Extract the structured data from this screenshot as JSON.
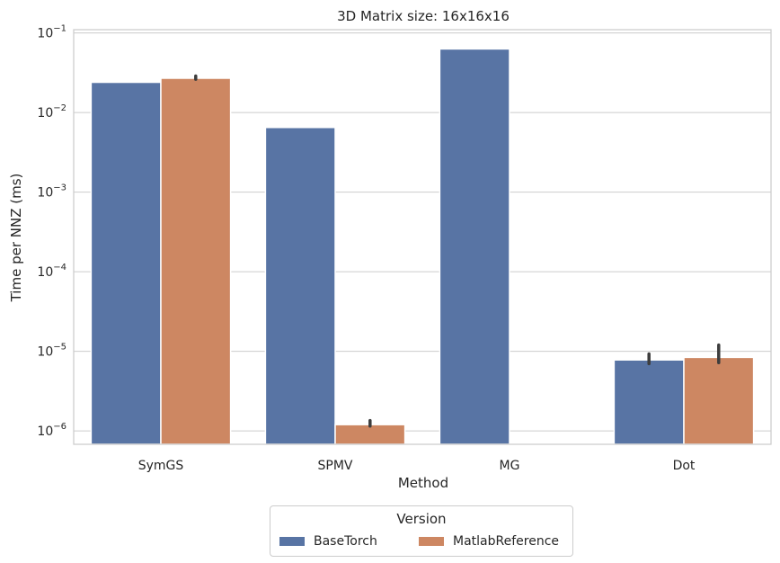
{
  "chart_data": {
    "type": "bar",
    "title": "3D Matrix size: 16x16x16",
    "xlabel": "Method",
    "ylabel": "Time per NNZ (ms)",
    "yscale": "log",
    "ylim": [
      6.8e-07,
      0.11
    ],
    "yticks": [
      {
        "value": 1e-06,
        "exp": "−6"
      },
      {
        "value": 1e-05,
        "exp": "−5"
      },
      {
        "value": 0.0001,
        "exp": "−4"
      },
      {
        "value": 0.001,
        "exp": "−3"
      },
      {
        "value": 0.01,
        "exp": "−2"
      },
      {
        "value": 0.1,
        "exp": "−1"
      }
    ],
    "ytick_base": "10",
    "categories": [
      "SymGS",
      "SPMV",
      "MG",
      "Dot"
    ],
    "grid": true,
    "legend_position": "bottom-center",
    "series": [
      {
        "name": "BaseTorch",
        "color": "#5874a4",
        "values": [
          0.024,
          0.0065,
          0.063,
          7.8e-06
        ],
        "errors": [
          null,
          null,
          null,
          [
            7e-06,
            9.3e-06
          ]
        ]
      },
      {
        "name": "MatlabReference",
        "color": "#cd8762",
        "values": [
          0.027,
          1.2e-06,
          null,
          8.4e-06
        ],
        "errors": [
          [
            0.0262,
            0.0288
          ],
          [
            1.15e-06,
            1.35e-06
          ],
          null,
          [
            7.2e-06,
            1.2e-05
          ]
        ]
      }
    ]
  },
  "legend": {
    "title": "Version"
  }
}
